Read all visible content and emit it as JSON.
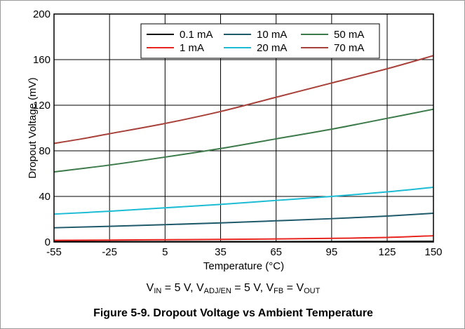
{
  "chart_data": {
    "type": "line",
    "xlabel": "Temperature (°C)",
    "ylabel": "Dropout Voltage (mV)",
    "xlim": [
      -55,
      150
    ],
    "ylim": [
      0,
      200
    ],
    "xticks": [
      -55,
      -25,
      5,
      35,
      65,
      95,
      125,
      150
    ],
    "yticks": [
      0,
      40,
      80,
      120,
      160,
      200
    ],
    "grid": true,
    "legend_position": "top-right",
    "series": [
      {
        "name": "0.1 mA",
        "color": "#000000",
        "x": [
          -55,
          -25,
          5,
          35,
          65,
          95,
          125,
          150
        ],
        "y": [
          0.3,
          0.3,
          0.3,
          0.3,
          0.3,
          0.4,
          0.5,
          0.6
        ]
      },
      {
        "name": "1 mA",
        "color": "#e8251f",
        "x": [
          -55,
          -25,
          5,
          35,
          65,
          95,
          125,
          150
        ],
        "y": [
          1.5,
          1.7,
          2.0,
          2.3,
          2.7,
          3.2,
          4.0,
          5.5
        ]
      },
      {
        "name": "10 mA",
        "color": "#1f5a6b",
        "x": [
          -55,
          -25,
          5,
          35,
          65,
          95,
          125,
          150
        ],
        "y": [
          12.5,
          13.8,
          15.2,
          16.8,
          18.6,
          20.5,
          22.8,
          25.2
        ]
      },
      {
        "name": "20 mA",
        "color": "#1cbcd4",
        "x": [
          -55,
          -25,
          5,
          35,
          65,
          95,
          125,
          150
        ],
        "y": [
          24.5,
          27.0,
          30.0,
          33.0,
          36.5,
          40.0,
          44.0,
          48.0
        ]
      },
      {
        "name": "50 mA",
        "color": "#3c7a4a",
        "x": [
          -55,
          -25,
          5,
          35,
          65,
          95,
          125,
          150
        ],
        "y": [
          61.5,
          67.5,
          74.5,
          82.0,
          90.5,
          99.0,
          108.5,
          116.5
        ]
      },
      {
        "name": "70 mA",
        "color": "#a8413a",
        "x": [
          -55,
          -40,
          -25,
          5,
          35,
          65,
          95,
          125,
          150
        ],
        "y": [
          86.5,
          90.5,
          95.0,
          104.0,
          114.5,
          127.0,
          139.5,
          152.0,
          163.5
        ]
      }
    ]
  },
  "conditions_html": "V<sub>IN</sub> = 5 V, V<sub>ADJ/EN</sub> = 5 V, V<sub>FB</sub> = V<sub>OUT</sub>",
  "caption": "Figure 5-9. Dropout Voltage vs Ambient Temperature"
}
